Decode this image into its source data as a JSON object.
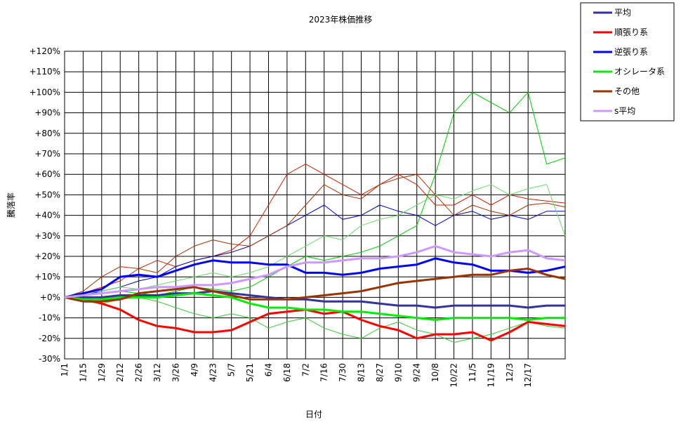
{
  "chart_data": {
    "type": "line",
    "title": "2023年株価推移",
    "x_label": "日付",
    "y_label": "騰落率",
    "categories": [
      "1/1",
      "1/15",
      "1/29",
      "2/12",
      "2/26",
      "3/12",
      "3/26",
      "4/9",
      "4/23",
      "5/7",
      "5/21",
      "6/4",
      "6/18",
      "7/2",
      "7/16",
      "7/30",
      "8/13",
      "8/27",
      "9/10",
      "9/24",
      "10/8",
      "10/22",
      "11/5",
      "11/19",
      "12/3",
      "12/17",
      null,
      null
    ],
    "ylim": [
      -30,
      120
    ],
    "yticks": [
      {
        "value": 120,
        "label": "+120%"
      },
      {
        "value": 110,
        "label": "+110%"
      },
      {
        "value": 100,
        "label": "+100%"
      },
      {
        "value": 90,
        "label": "+90%"
      },
      {
        "value": 80,
        "label": "+80%"
      },
      {
        "value": 70,
        "label": "+70%"
      },
      {
        "value": 60,
        "label": "+60%"
      },
      {
        "value": 50,
        "label": "+50%"
      },
      {
        "value": 40,
        "label": "+40%"
      },
      {
        "value": 30,
        "label": "+30%"
      },
      {
        "value": 20,
        "label": "+20%"
      },
      {
        "value": 10,
        "label": "+10%"
      },
      {
        "value": 0,
        "label": "+0%"
      },
      {
        "value": -10,
        "label": "-10%"
      },
      {
        "value": -20,
        "label": "-20%"
      },
      {
        "value": -30,
        "label": "-30%"
      }
    ],
    "grid": true,
    "legend": "outside-right",
    "series": [
      {
        "name": "平均",
        "color": "#333399",
        "values": [
          0,
          0,
          0,
          1,
          1,
          1,
          2,
          2,
          3,
          2,
          1,
          0,
          -1,
          -1,
          -2,
          -2,
          -2,
          -3,
          -4,
          -4,
          -5,
          -4,
          -4,
          -4,
          -4,
          -5,
          -4,
          -4
        ]
      },
      {
        "name": "順張り系",
        "color": "#ff0000",
        "values": [
          0,
          -1,
          -3,
          -6,
          -11,
          -14,
          -15,
          -17,
          -17,
          -16,
          -12,
          -8,
          -7,
          -6,
          -8,
          -7,
          -11,
          -14,
          -16,
          -20,
          -18,
          -18,
          -17,
          -21,
          -17,
          -12,
          -13,
          -14
        ]
      },
      {
        "name": "逆張り系",
        "color": "#0000ff",
        "values": [
          0,
          2,
          4,
          10,
          11,
          10,
          13,
          16,
          18,
          17,
          17,
          16,
          16,
          12,
          12,
          11,
          12,
          14,
          15,
          16,
          19,
          17,
          16,
          13,
          13,
          12,
          13,
          15
        ]
      },
      {
        "name": "オシレータ系",
        "color": "#00ee00",
        "values": [
          0,
          -1,
          -1,
          0,
          0,
          0,
          1,
          2,
          1,
          0,
          -3,
          -5,
          -5,
          -6,
          -6,
          -7,
          -7,
          -8,
          -9,
          -10,
          -11,
          -10,
          -10,
          -10,
          -10,
          -11,
          -10,
          -10
        ]
      },
      {
        "name": "その他",
        "color": "#993300",
        "values": [
          0,
          -2,
          -2,
          -1,
          2,
          3,
          4,
          5,
          3,
          1,
          -1,
          -1,
          -1,
          0,
          1,
          2,
          3,
          5,
          7,
          8,
          9,
          10,
          11,
          11,
          13,
          14,
          11,
          9
        ]
      },
      {
        "name": "s平均",
        "color": "#cc99ff",
        "values": [
          0,
          1,
          2,
          3,
          4,
          5,
          5,
          6,
          6,
          7,
          9,
          11,
          15,
          17,
          17,
          18,
          19,
          19,
          20,
          22,
          25,
          22,
          21,
          20,
          22,
          23,
          19,
          18
        ]
      },
      {
        "color": "#cc2200",
        "values": [
          0,
          2,
          5,
          8,
          14,
          18,
          15,
          18,
          20,
          23,
          30,
          45,
          60,
          65,
          60,
          55,
          50,
          55,
          60,
          55,
          45,
          45,
          50,
          45,
          50,
          48,
          47,
          46
        ]
      },
      {
        "color": "#00cc00",
        "values": [
          0,
          1,
          2,
          3,
          2,
          1,
          3,
          5,
          4,
          3,
          5,
          10,
          15,
          20,
          18,
          20,
          22,
          25,
          30,
          35,
          60,
          90,
          100,
          95,
          90,
          100,
          65,
          68
        ]
      },
      {
        "color": "#0000cc",
        "values": [
          0,
          1,
          3,
          5,
          8,
          10,
          15,
          18,
          20,
          22,
          25,
          30,
          35,
          40,
          45,
          38,
          40,
          45,
          42,
          40,
          35,
          40,
          42,
          38,
          40,
          38,
          42,
          42
        ]
      },
      {
        "color": "#33cc33",
        "values": [
          0,
          -2,
          -3,
          -1,
          0,
          -2,
          -5,
          -8,
          -10,
          -8,
          -10,
          -15,
          -12,
          -10,
          -15,
          -18,
          -20,
          -15,
          -12,
          -16,
          -18,
          -22,
          -20,
          -18,
          -15,
          -12,
          -14,
          -15
        ]
      },
      {
        "color": "#aa3300",
        "values": [
          0,
          3,
          10,
          15,
          14,
          12,
          20,
          25,
          28,
          26,
          25,
          30,
          35,
          45,
          55,
          50,
          48,
          55,
          58,
          60,
          50,
          40,
          45,
          42,
          40,
          45,
          46,
          44
        ]
      },
      {
        "color": "#66dd66",
        "values": [
          0,
          2,
          3,
          5,
          4,
          6,
          8,
          10,
          12,
          10,
          12,
          15,
          20,
          25,
          30,
          28,
          35,
          38,
          40,
          45,
          50,
          48,
          52,
          55,
          50,
          53,
          55,
          30
        ]
      }
    ]
  }
}
